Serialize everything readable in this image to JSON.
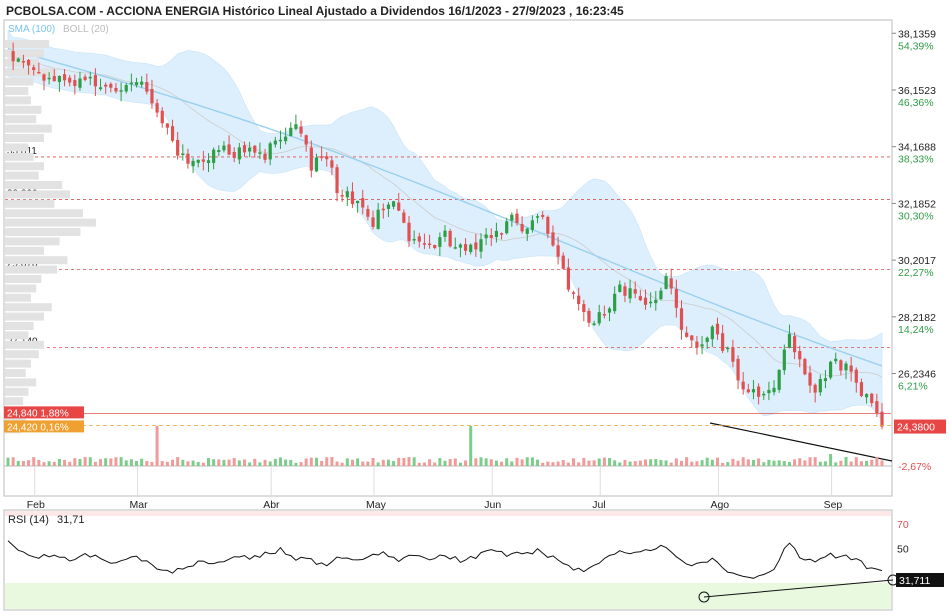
{
  "title": "PCBOLSA.COM - ACCIONA ENERGIA Histórico Lineal Ajustado a Dividendos 16/1/2023 - 27/9/2023 , 16:23:45",
  "legend": {
    "sma": "SMA (100)",
    "boll": "BOLL (20)"
  },
  "colors": {
    "up": "#2e9e46",
    "down": "#e05050",
    "sma": "#9ad0ee",
    "band": "#d7ecfb",
    "pivot": "#e05050",
    "rsi_zone": "#e8f9e0"
  },
  "chart_data": {
    "type": "candlestick",
    "ylim": [
      23.0,
      38.6
    ],
    "y_ticks": [
      {
        "value": 38.1359,
        "label": "38,1359",
        "pct": "54,39%"
      },
      {
        "value": 36.1523,
        "label": "36,1523",
        "pct": "46,36%"
      },
      {
        "value": 34.1688,
        "label": "34,1688",
        "pct": "38,33%"
      },
      {
        "value": 32.1852,
        "label": "32,1852",
        "pct": "30,30%"
      },
      {
        "value": 30.2017,
        "label": "30,2017",
        "pct": "22,27%"
      },
      {
        "value": 28.2182,
        "label": "28,2182",
        "pct": "14,24%"
      },
      {
        "value": 26.2346,
        "label": "26,2346",
        "pct": "6,21%"
      },
      {
        "value": 23.5,
        "label": "",
        "pct": "-2,67%"
      }
    ],
    "months": [
      "Feb",
      "Mar",
      "Abr",
      "May",
      "Jun",
      "Jul",
      "Ago",
      "Sep"
    ],
    "pivot_levels": [
      {
        "value": 33.811,
        "label": "33,811"
      },
      {
        "value": 32.32,
        "label": "32,320"
      },
      {
        "value": 29.878,
        "label": "29,878"
      },
      {
        "value": 27.14,
        "label": "27,140"
      }
    ],
    "last_price": {
      "value": 24.38,
      "label": "24,3800"
    },
    "tag_high": {
      "value": 24.84,
      "text": "24,840 1,88%"
    },
    "tag_low": {
      "value": 24.42,
      "text": "24,420 0,16%"
    },
    "close_waypoints": [
      [
        0,
        37.4
      ],
      [
        5,
        36.8
      ],
      [
        10,
        36.4
      ],
      [
        15,
        36.6
      ],
      [
        20,
        36.2
      ],
      [
        25,
        36.6
      ],
      [
        28,
        35.8
      ],
      [
        32,
        34.2
      ],
      [
        35,
        33.6
      ],
      [
        40,
        34.0
      ],
      [
        45,
        34.0
      ],
      [
        50,
        33.9
      ],
      [
        53,
        34.6
      ],
      [
        56,
        35.1
      ],
      [
        59,
        33.5
      ],
      [
        62,
        33.9
      ],
      [
        64,
        32.6
      ],
      [
        68,
        32.3
      ],
      [
        71,
        31.6
      ],
      [
        75,
        32.5
      ],
      [
        78,
        30.9
      ],
      [
        82,
        30.6
      ],
      [
        85,
        31.0
      ],
      [
        88,
        30.5
      ],
      [
        92,
        30.7
      ],
      [
        95,
        31.2
      ],
      [
        98,
        31.6
      ],
      [
        101,
        31.3
      ],
      [
        104,
        31.6
      ],
      [
        107,
        30.3
      ],
      [
        110,
        28.8
      ],
      [
        113,
        28.0
      ],
      [
        116,
        28.3
      ],
      [
        119,
        29.2
      ],
      [
        122,
        29.0
      ],
      [
        125,
        28.7
      ],
      [
        128,
        29.6
      ],
      [
        131,
        27.8
      ],
      [
        134,
        27.3
      ],
      [
        137,
        27.7
      ],
      [
        140,
        27.0
      ],
      [
        143,
        25.7
      ],
      [
        146,
        25.4
      ],
      [
        149,
        25.8
      ],
      [
        152,
        27.4
      ],
      [
        154,
        26.6
      ],
      [
        157,
        25.7
      ],
      [
        160,
        26.5
      ],
      [
        163,
        26.6
      ],
      [
        166,
        25.6
      ],
      [
        168,
        25.0
      ],
      [
        170,
        24.38
      ]
    ],
    "volume_spikes": [
      {
        "index": 29,
        "value": 1.0
      },
      {
        "index": 90,
        "value": 1.0
      }
    ],
    "rsi": {
      "label": "RSI (14)",
      "value_text": "31,71",
      "last_label": "31,711",
      "ylim": [
        0,
        80
      ],
      "levels": [
        70,
        50
      ],
      "waypoints": [
        [
          0,
          55
        ],
        [
          3,
          48
        ],
        [
          6,
          42
        ],
        [
          9,
          46
        ],
        [
          12,
          40
        ],
        [
          15,
          44
        ],
        [
          18,
          42
        ],
        [
          21,
          38
        ],
        [
          24,
          43
        ],
        [
          27,
          40
        ],
        [
          30,
          32
        ],
        [
          32,
          30
        ],
        [
          35,
          35
        ],
        [
          38,
          40
        ],
        [
          41,
          38
        ],
        [
          44,
          44
        ],
        [
          47,
          42
        ],
        [
          50,
          45
        ],
        [
          53,
          49
        ],
        [
          56,
          42
        ],
        [
          59,
          40
        ],
        [
          62,
          36
        ],
        [
          64,
          43
        ],
        [
          67,
          40
        ],
        [
          70,
          44
        ],
        [
          73,
          47
        ],
        [
          76,
          40
        ],
        [
          79,
          44
        ],
        [
          82,
          41
        ],
        [
          85,
          44
        ],
        [
          88,
          40
        ],
        [
          91,
          43
        ],
        [
          94,
          48
        ],
        [
          97,
          45
        ],
        [
          100,
          46
        ],
        [
          103,
          48
        ],
        [
          106,
          42
        ],
        [
          108,
          38
        ],
        [
          110,
          33
        ],
        [
          113,
          32
        ],
        [
          116,
          40
        ],
        [
          119,
          48
        ],
        [
          122,
          45
        ],
        [
          125,
          48
        ],
        [
          128,
          52
        ],
        [
          131,
          40
        ],
        [
          134,
          36
        ],
        [
          137,
          40
        ],
        [
          140,
          30
        ],
        [
          143,
          26
        ],
        [
          146,
          28
        ],
        [
          149,
          34
        ],
        [
          152,
          55
        ],
        [
          154,
          42
        ],
        [
          157,
          38
        ],
        [
          160,
          44
        ],
        [
          163,
          44
        ],
        [
          166,
          38
        ],
        [
          168,
          32
        ],
        [
          170,
          31.711
        ]
      ]
    }
  }
}
